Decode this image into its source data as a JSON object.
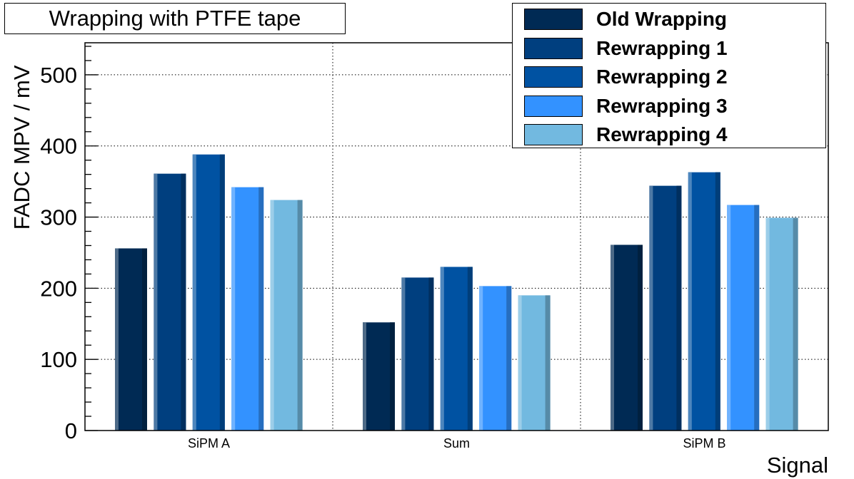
{
  "title": "Wrapping with PTFE tape",
  "chart_data": {
    "type": "bar",
    "title": "Wrapping with PTFE tape",
    "xlabel": "Signal",
    "ylabel": "FADC MPV / mV",
    "categories": [
      "SiPM A",
      "Sum",
      "SiPM B"
    ],
    "ylim": [
      0,
      545
    ],
    "yticks": [
      0,
      100,
      200,
      300,
      400,
      500
    ],
    "grid": true,
    "legend_position": "top-right",
    "series": [
      {
        "name": "Old Wrapping",
        "color": "#002a54",
        "values": [
          256,
          152,
          261
        ]
      },
      {
        "name": "Rewrapping 1",
        "color": "#003f7f",
        "values": [
          361,
          215,
          344
        ]
      },
      {
        "name": "Rewrapping 2",
        "color": "#0052a2",
        "values": [
          388,
          230,
          363
        ]
      },
      {
        "name": "Rewrapping 3",
        "color": "#3392ff",
        "values": [
          342,
          203,
          317
        ]
      },
      {
        "name": "Rewrapping 4",
        "color": "#72b9e0",
        "values": [
          324,
          190,
          299
        ]
      }
    ]
  }
}
